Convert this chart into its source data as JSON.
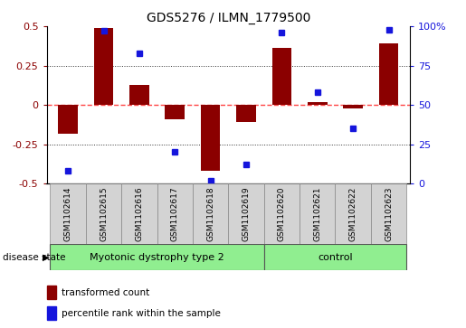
{
  "title": "GDS5276 / ILMN_1779500",
  "samples": [
    "GSM1102614",
    "GSM1102615",
    "GSM1102616",
    "GSM1102617",
    "GSM1102618",
    "GSM1102619",
    "GSM1102620",
    "GSM1102621",
    "GSM1102622",
    "GSM1102623"
  ],
  "red_values": [
    -0.18,
    0.49,
    0.13,
    -0.09,
    -0.42,
    -0.11,
    0.36,
    0.02,
    -0.02,
    0.39
  ],
  "blue_values": [
    8,
    97,
    83,
    20,
    2,
    12,
    96,
    58,
    35,
    98
  ],
  "group1_count": 6,
  "group2_count": 4,
  "group1_label": "Myotonic dystrophy type 2",
  "group2_label": "control",
  "group_color": "#90EE90",
  "sample_box_color": "#D3D3D3",
  "ylim_left": [
    -0.5,
    0.5
  ],
  "ylim_right": [
    0,
    100
  ],
  "yticks_left": [
    -0.5,
    -0.25,
    0.0,
    0.25,
    0.5
  ],
  "ytick_labels_left": [
    "-0.5",
    "-0.25",
    "0",
    "0.25",
    "0.5"
  ],
  "yticks_right": [
    0,
    25,
    50,
    75,
    100
  ],
  "ytick_labels_right": [
    "0",
    "25",
    "50",
    "75",
    "100%"
  ],
  "red_color": "#8B0000",
  "blue_color": "#1515DC",
  "zero_line_color": "#FF4444",
  "grid_dotline_color": "#333333",
  "bg_color": "#FFFFFF",
  "legend_red": "transformed count",
  "legend_blue": "percentile rank within the sample",
  "disease_state_label": "disease state",
  "bar_width": 0.55,
  "title_fontsize": 10,
  "tick_fontsize": 8,
  "sample_fontsize": 6.5,
  "group_fontsize": 8,
  "legend_fontsize": 7.5
}
